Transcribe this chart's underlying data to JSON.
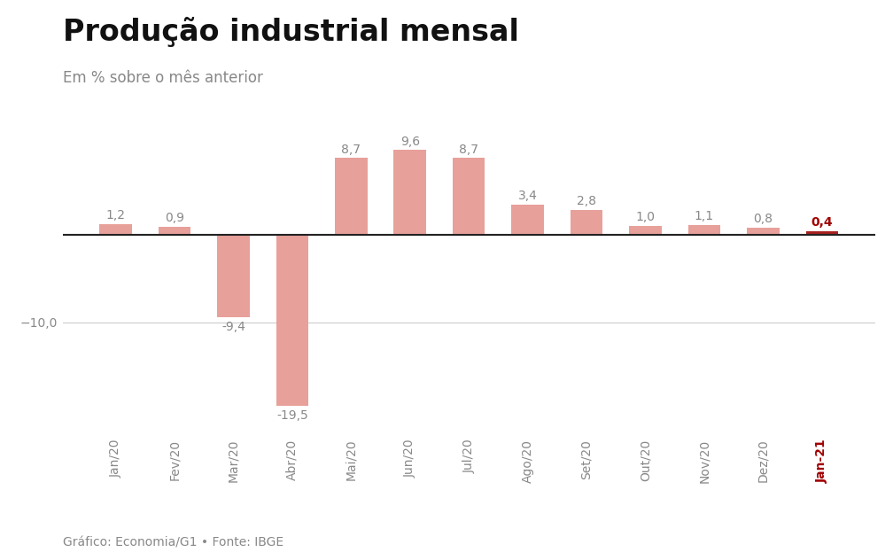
{
  "title": "Produção industrial mensal",
  "subtitle": "Em % sobre o mês anterior",
  "footer": "Gráfico: Economia/G1 • Fonte: IBGE",
  "categories": [
    "Jan/20",
    "Fev/20",
    "Mar/20",
    "Abr/20",
    "Mai/20",
    "Jun/20",
    "Jul/20",
    "Ago/20",
    "Set/20",
    "Out/20",
    "Nov/20",
    "Dez/20",
    "Jan-21"
  ],
  "values": [
    1.2,
    0.9,
    -9.4,
    -19.5,
    8.7,
    9.6,
    8.7,
    3.4,
    2.8,
    1.0,
    1.1,
    0.8,
    0.4
  ],
  "bar_colors": [
    "#e8a09a",
    "#e8a09a",
    "#e8a09a",
    "#e8a09a",
    "#e8a09a",
    "#e8a09a",
    "#e8a09a",
    "#e8a09a",
    "#e8a09a",
    "#e8a09a",
    "#e8a09a",
    "#e8a09a",
    "#a82020"
  ],
  "ylim": [
    -23,
    12
  ],
  "label_fontsize": 10,
  "title_fontsize": 24,
  "subtitle_fontsize": 12,
  "footer_fontsize": 10,
  "background_color": "#ffffff",
  "label_color_default": "#888888",
  "label_color_last": "#a00000",
  "zero_line_color": "#222222",
  "grid_color": "#cccccc",
  "bar_width": 0.55
}
